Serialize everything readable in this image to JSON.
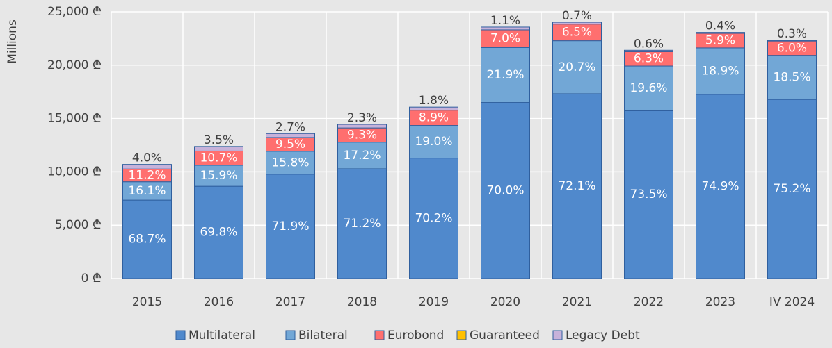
{
  "chart_data": {
    "type": "stacked_bar",
    "y_axis_label": "Millions",
    "categories": [
      "2015",
      "2016",
      "2017",
      "2018",
      "2019",
      "2020",
      "2021",
      "2022",
      "2023",
      "IV 2024"
    ],
    "ylim": [
      0,
      25000
    ],
    "yticks": [
      {
        "value": 0,
        "label": "0 ₾"
      },
      {
        "value": 5000,
        "label": "5,000 ₾"
      },
      {
        "value": 10000,
        "label": "10,000 ₾"
      },
      {
        "value": 15000,
        "label": "15,000 ₾"
      },
      {
        "value": 20000,
        "label": "20,000 ₾"
      },
      {
        "value": 25000,
        "label": "25,000 ₾"
      }
    ],
    "grid": true,
    "legend": "bottom",
    "series": [
      {
        "name": "Multilateral",
        "color": "#5089cc",
        "values": [
          7350,
          8650,
          9780,
          10290,
          11290,
          16500,
          17320,
          15730,
          17260,
          16790
        ],
        "share_labels": [
          "68.7%",
          "69.8%",
          "71.9%",
          "71.2%",
          "70.2%",
          "70.0%",
          "72.1%",
          "73.5%",
          "74.9%",
          "75.2%"
        ]
      },
      {
        "name": "Bilateral",
        "color": "#72a7d6",
        "values": [
          1720,
          1970,
          2150,
          2490,
          3060,
          5160,
          4970,
          4190,
          4360,
          4130
        ],
        "share_labels": [
          "16.1%",
          "15.9%",
          "15.8%",
          "17.2%",
          "19.0%",
          "21.9%",
          "20.7%",
          "19.6%",
          "18.9%",
          "18.5%"
        ]
      },
      {
        "name": "Eurobond",
        "color": "#ff6f6f",
        "values": [
          1200,
          1330,
          1290,
          1340,
          1430,
          1650,
          1560,
          1350,
          1360,
          1340
        ],
        "share_labels": [
          "11.2%",
          "10.7%",
          "9.5%",
          "9.3%",
          "8.9%",
          "7.0%",
          "6.5%",
          "6.3%",
          "5.9%",
          "6.0%"
        ]
      },
      {
        "name": "Guaranteed",
        "color": "#ffc000",
        "values": [
          0,
          0,
          0,
          0,
          0,
          0,
          0,
          0,
          0,
          0
        ]
      },
      {
        "name": "Legacy Debt",
        "color": "#c7b2da",
        "values": [
          430,
          430,
          370,
          330,
          290,
          260,
          170,
          130,
          90,
          70
        ],
        "share_labels": [
          "4.0%",
          "3.5%",
          "2.7%",
          "2.3%",
          "1.8%",
          "1.1%",
          "0.7%",
          "0.6%",
          "0.4%",
          "0.3%"
        ]
      }
    ]
  }
}
